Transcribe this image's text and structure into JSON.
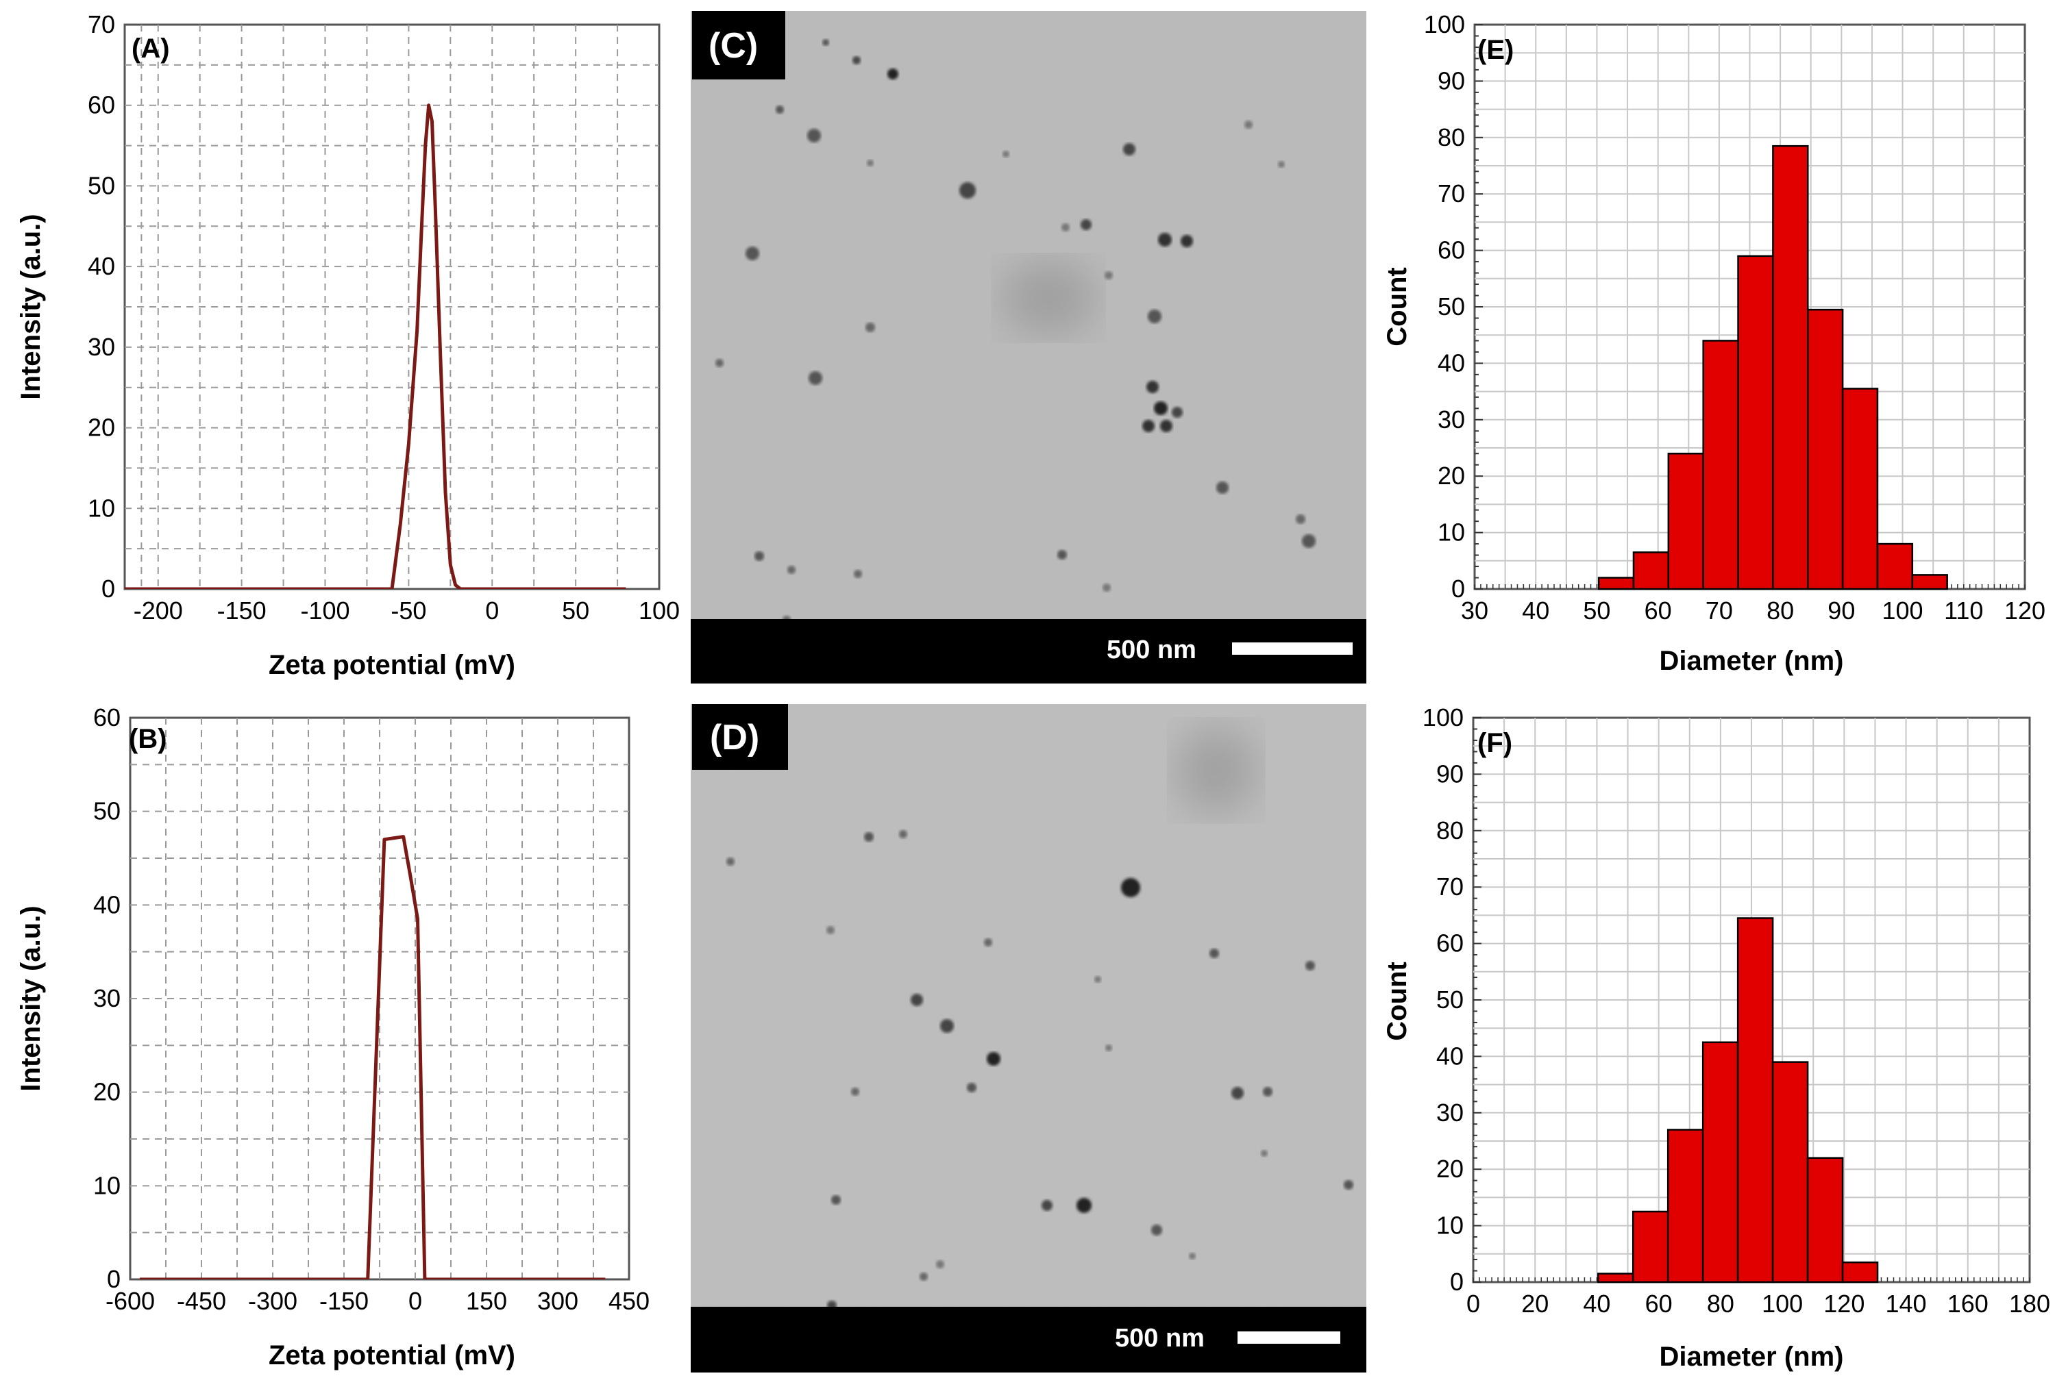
{
  "chart_data": [
    {
      "id": "A",
      "type": "line",
      "panel_label": "(A)",
      "xlabel": "Zeta potential (mV)",
      "ylabel": "Intensity (a.u.)",
      "xlim": [
        -220,
        100
      ],
      "ylim": [
        0,
        70
      ],
      "xticks": [
        -200,
        -150,
        -100,
        -50,
        0,
        50,
        100
      ],
      "yticks": [
        0,
        10,
        20,
        30,
        40,
        50,
        60,
        70
      ],
      "grid": true,
      "line_color": "#7b1a14",
      "series": [
        {
          "x": [
            -220,
            -60,
            -55,
            -50,
            -45,
            -42,
            -40,
            -38,
            -36,
            -34,
            -31,
            -28,
            -25,
            -22,
            -19,
            80
          ],
          "y": [
            0,
            0,
            8,
            18,
            32,
            46,
            55,
            60,
            58,
            47,
            29,
            12,
            3,
            0.5,
            0,
            0
          ]
        }
      ]
    },
    {
      "id": "B",
      "type": "line",
      "panel_label": "(B)",
      "xlabel": "Zeta potential (mV)",
      "ylabel": "Intensity (a.u.)",
      "xlim": [
        -600,
        450
      ],
      "ylim": [
        0,
        60
      ],
      "xticks": [
        -600,
        -450,
        -300,
        -150,
        0,
        150,
        300,
        450
      ],
      "yticks": [
        0,
        10,
        20,
        30,
        40,
        50,
        60
      ],
      "grid": true,
      "line_color": "#7b1a14",
      "series": [
        {
          "x": [
            -580,
            -100,
            -65,
            -25,
            -10,
            5,
            20,
            400
          ],
          "y": [
            0,
            0,
            47,
            47.3,
            43,
            38.5,
            0,
            0
          ]
        }
      ]
    },
    {
      "id": "C",
      "type": "image",
      "panel_label": "(C)",
      "scale_bar": "500 nm"
    },
    {
      "id": "D",
      "type": "image",
      "panel_label": "(D)",
      "scale_bar": "500 nm"
    },
    {
      "id": "E",
      "type": "bar",
      "panel_label": "(E)",
      "xlabel": "Diameter (nm)",
      "ylabel": "Count",
      "xlim": [
        30,
        120
      ],
      "ylim": [
        0,
        100
      ],
      "xticks": [
        30,
        40,
        50,
        60,
        70,
        80,
        90,
        100,
        110,
        120
      ],
      "yticks": [
        0,
        10,
        20,
        30,
        40,
        50,
        60,
        70,
        80,
        90,
        100
      ],
      "grid": true,
      "bar_color": "#e00000",
      "bin_width": 5.7,
      "bin_starts": [
        50.3,
        56.0,
        61.7,
        67.4,
        73.1,
        78.8,
        84.5,
        90.2,
        95.9,
        101.6
      ],
      "values": [
        2,
        6.5,
        24,
        44,
        59,
        78.5,
        49.5,
        35.5,
        8,
        2.5
      ]
    },
    {
      "id": "F",
      "type": "bar",
      "panel_label": "(F)",
      "xlabel": "Diameter (nm)",
      "ylabel": "Count",
      "xlim": [
        0,
        180
      ],
      "ylim": [
        0,
        100
      ],
      "xticks": [
        0,
        20,
        40,
        60,
        80,
        100,
        120,
        140,
        160,
        180
      ],
      "yticks": [
        0,
        10,
        20,
        30,
        40,
        50,
        60,
        70,
        80,
        90,
        100
      ],
      "grid": true,
      "bar_color": "#e00000",
      "bin_width": 11.3,
      "bin_starts": [
        40.4,
        51.7,
        63.0,
        74.3,
        85.6,
        96.9,
        108.2,
        119.5
      ],
      "values": [
        1.5,
        12.5,
        27,
        42.5,
        64.5,
        39,
        22,
        3.5
      ]
    }
  ]
}
